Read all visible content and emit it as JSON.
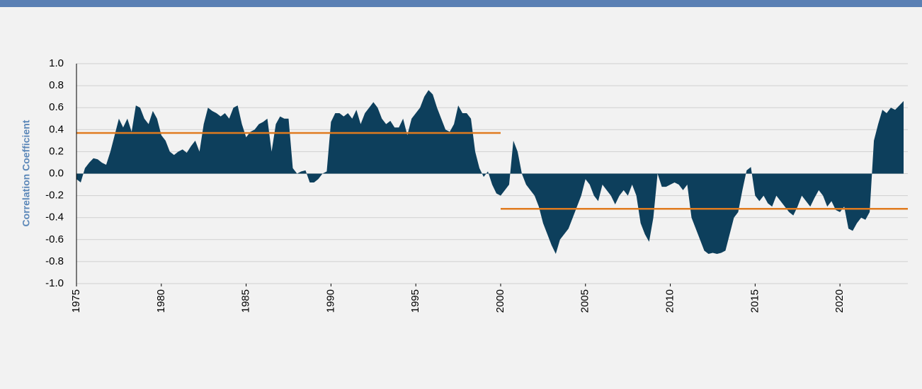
{
  "chart_data": {
    "type": "area",
    "y_label": "Correlation Coefficient",
    "color": "#0d3f5c",
    "grid": true,
    "xlim": [
      1975,
      2024
    ],
    "xticks": [
      1975,
      1980,
      1985,
      1990,
      1995,
      2000,
      2005,
      2010,
      2015,
      2020
    ],
    "ylim": [
      -1,
      1
    ],
    "yticks": [
      {
        "value": 1,
        "label": "1.0"
      },
      0.8,
      0.6,
      0.4,
      0.2,
      {
        "value": 0,
        "label": "0.0"
      },
      -0.2,
      -0.4,
      -0.6,
      -0.8,
      {
        "value": -1,
        "label": "-1.0"
      }
    ],
    "x": [
      1975,
      1975.25,
      1975.5,
      1975.75,
      1976,
      1976.25,
      1976.5,
      1976.75,
      1977,
      1977.25,
      1977.5,
      1977.75,
      1978,
      1978.25,
      1978.5,
      1978.75,
      1979,
      1979.25,
      1979.5,
      1979.75,
      1980,
      1980.25,
      1980.5,
      1980.75,
      1981,
      1981.25,
      1981.5,
      1981.75,
      1982,
      1982.25,
      1982.5,
      1982.75,
      1983,
      1983.25,
      1983.5,
      1983.75,
      1984,
      1984.25,
      1984.5,
      1984.75,
      1985,
      1985.25,
      1985.5,
      1985.75,
      1986,
      1986.25,
      1986.5,
      1986.75,
      1987,
      1987.25,
      1987.5,
      1987.75,
      1988,
      1988.25,
      1988.5,
      1988.75,
      1989,
      1989.25,
      1989.5,
      1989.75,
      1990,
      1990.25,
      1990.5,
      1990.75,
      1991,
      1991.25,
      1991.5,
      1991.75,
      1992,
      1992.25,
      1992.5,
      1992.75,
      1993,
      1993.25,
      1993.5,
      1993.75,
      1994,
      1994.25,
      1994.5,
      1994.75,
      1995,
      1995.25,
      1995.5,
      1995.75,
      1996,
      1996.25,
      1996.5,
      1996.75,
      1997,
      1997.25,
      1997.5,
      1997.75,
      1998,
      1998.25,
      1998.5,
      1998.75,
      1999,
      1999.25,
      1999.5,
      1999.75,
      2000,
      2000.25,
      2000.5,
      2000.75,
      2001,
      2001.25,
      2001.5,
      2001.75,
      2002,
      2002.25,
      2002.5,
      2002.75,
      2003,
      2003.25,
      2003.5,
      2003.75,
      2004,
      2004.25,
      2004.5,
      2004.75,
      2005,
      2005.25,
      2005.5,
      2005.75,
      2006,
      2006.25,
      2006.5,
      2006.75,
      2007,
      2007.25,
      2007.5,
      2007.75,
      2008,
      2008.25,
      2008.5,
      2008.75,
      2009,
      2009.25,
      2009.5,
      2009.75,
      2010,
      2010.25,
      2010.5,
      2010.75,
      2011,
      2011.25,
      2011.5,
      2011.75,
      2012,
      2012.25,
      2012.5,
      2012.75,
      2013,
      2013.25,
      2013.5,
      2013.75,
      2014,
      2014.25,
      2014.5,
      2014.75,
      2015,
      2015.25,
      2015.5,
      2015.75,
      2016,
      2016.25,
      2016.5,
      2016.75,
      2017,
      2017.25,
      2017.5,
      2017.75,
      2018,
      2018.25,
      2018.5,
      2018.75,
      2019,
      2019.25,
      2019.5,
      2019.75,
      2020,
      2020.25,
      2020.5,
      2020.75,
      2021,
      2021.25,
      2021.5,
      2021.75,
      2022,
      2022.25,
      2022.5,
      2022.75,
      2023,
      2023.25,
      2023.5,
      2023.75
    ],
    "values": [
      -0.05,
      -0.08,
      0.05,
      0.1,
      0.14,
      0.13,
      0.1,
      0.08,
      0.2,
      0.35,
      0.5,
      0.42,
      0.5,
      0.38,
      0.62,
      0.6,
      0.5,
      0.45,
      0.57,
      0.5,
      0.35,
      0.3,
      0.2,
      0.17,
      0.2,
      0.22,
      0.19,
      0.25,
      0.3,
      0.2,
      0.45,
      0.6,
      0.57,
      0.55,
      0.52,
      0.55,
      0.5,
      0.6,
      0.62,
      0.45,
      0.33,
      0.38,
      0.4,
      0.45,
      0.47,
      0.5,
      0.2,
      0.45,
      0.52,
      0.5,
      0.5,
      0.05,
      0.0,
      0.02,
      0.03,
      -0.08,
      -0.08,
      -0.05,
      0.0,
      0.02,
      0.47,
      0.55,
      0.55,
      0.52,
      0.55,
      0.5,
      0.58,
      0.45,
      0.55,
      0.6,
      0.65,
      0.6,
      0.5,
      0.45,
      0.48,
      0.42,
      0.42,
      0.5,
      0.35,
      0.5,
      0.55,
      0.6,
      0.7,
      0.76,
      0.72,
      0.6,
      0.5,
      0.4,
      0.38,
      0.45,
      0.62,
      0.55,
      0.55,
      0.5,
      0.2,
      0.05,
      -0.03,
      0.02,
      -0.1,
      -0.18,
      -0.2,
      -0.15,
      -0.1,
      0.3,
      0.2,
      0.0,
      -0.1,
      -0.15,
      -0.2,
      -0.3,
      -0.45,
      -0.55,
      -0.65,
      -0.73,
      -0.6,
      -0.55,
      -0.5,
      -0.4,
      -0.3,
      -0.2,
      -0.05,
      -0.1,
      -0.2,
      -0.25,
      -0.1,
      -0.15,
      -0.2,
      -0.28,
      -0.2,
      -0.15,
      -0.2,
      -0.1,
      -0.2,
      -0.45,
      -0.55,
      -0.62,
      -0.4,
      0.0,
      -0.12,
      -0.12,
      -0.1,
      -0.08,
      -0.1,
      -0.15,
      -0.1,
      -0.4,
      -0.5,
      -0.6,
      -0.7,
      -0.73,
      -0.72,
      -0.73,
      -0.72,
      -0.7,
      -0.55,
      -0.4,
      -0.35,
      -0.15,
      0.03,
      0.06,
      -0.2,
      -0.25,
      -0.2,
      -0.27,
      -0.3,
      -0.2,
      -0.25,
      -0.3,
      -0.35,
      -0.38,
      -0.3,
      -0.2,
      -0.25,
      -0.3,
      -0.22,
      -0.15,
      -0.2,
      -0.3,
      -0.25,
      -0.33,
      -0.35,
      -0.3,
      -0.5,
      -0.52,
      -0.45,
      -0.4,
      -0.42,
      -0.35,
      0.3,
      0.45,
      0.58,
      0.55,
      0.6,
      0.58,
      0.62,
      0.66
    ],
    "reference_lines": [
      {
        "color": "#e07b1f",
        "value": 0.37,
        "x": [
          1975,
          2000
        ]
      },
      {
        "color": "#e07b1f",
        "value": -0.32,
        "x": [
          2000,
          2024
        ]
      }
    ]
  }
}
